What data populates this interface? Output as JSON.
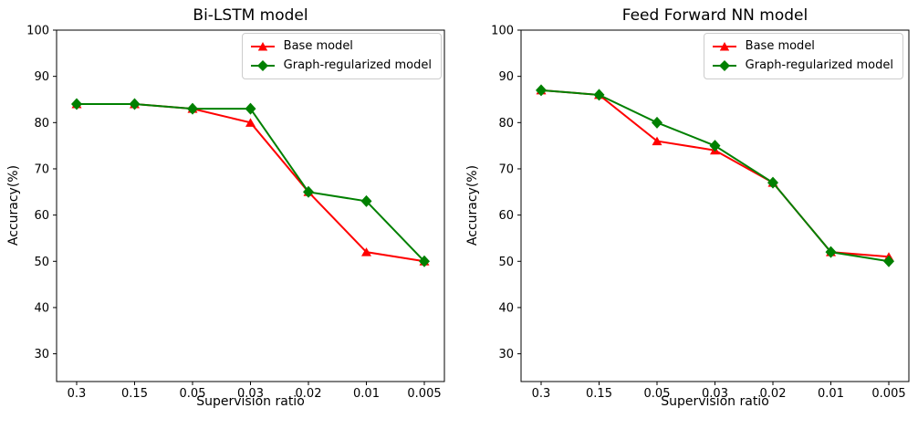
{
  "figure": {
    "background": "#ffffff",
    "axis_color": "#000000",
    "legend_border_color": "#cccccc"
  },
  "chart_data": [
    {
      "type": "line",
      "title": "Bi-LSTM model",
      "xlabel": "Supervision ratio",
      "ylabel": "Accuracy(%)",
      "categories": [
        "0.3",
        "0.15",
        "0.05",
        "0.03",
        "0.02",
        "0.01",
        "0.005"
      ],
      "yticks": [
        30,
        40,
        50,
        60,
        70,
        80,
        90,
        100
      ],
      "ylim": [
        24,
        100
      ],
      "grid": false,
      "legend_position": "upper right",
      "series": [
        {
          "name": "Base model",
          "color": "#ff0000",
          "marker": "triangle",
          "values": [
            84,
            84,
            83,
            80,
            65,
            52,
            50
          ]
        },
        {
          "name": "Graph-regularized model",
          "color": "#008000",
          "marker": "diamond",
          "values": [
            84,
            84,
            83,
            83,
            65,
            63,
            50
          ]
        }
      ]
    },
    {
      "type": "line",
      "title": "Feed Forward NN model",
      "xlabel": "Supervision ratio",
      "ylabel": "Accuracy(%)",
      "categories": [
        "0.3",
        "0.15",
        "0.05",
        "0.03",
        "0.02",
        "0.01",
        "0.005"
      ],
      "yticks": [
        30,
        40,
        50,
        60,
        70,
        80,
        90,
        100
      ],
      "ylim": [
        24,
        100
      ],
      "grid": false,
      "legend_position": "upper right",
      "series": [
        {
          "name": "Base model",
          "color": "#ff0000",
          "marker": "triangle",
          "values": [
            87,
            86,
            76,
            74,
            67,
            52,
            51
          ]
        },
        {
          "name": "Graph-regularized model",
          "color": "#008000",
          "marker": "diamond",
          "values": [
            87,
            86,
            80,
            75,
            67,
            52,
            50
          ]
        }
      ]
    }
  ]
}
